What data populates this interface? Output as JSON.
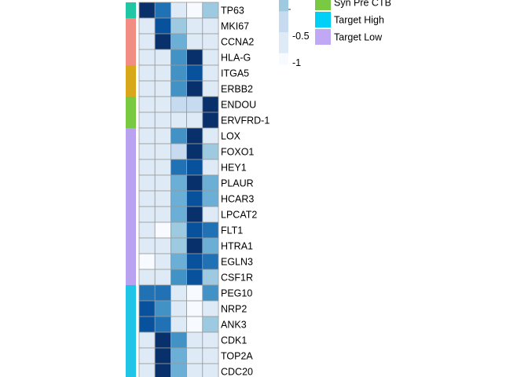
{
  "chart_data": {
    "type": "heatmap",
    "genes": [
      "TP63",
      "MKI67",
      "CCNA2",
      "HLA-G",
      "ITGA5",
      "ERBB2",
      "ENDOU",
      "ERVFRD-1",
      "LOX",
      "FOXO1",
      "HEY1",
      "PLAUR",
      "HCAR3",
      "LPCAT2",
      "FLT1",
      "HTRA1",
      "EGLN3",
      "CSF1R",
      "PEG10",
      "NRP2",
      "ANK3",
      "CDK1",
      "TOP2A",
      "CDC20"
    ],
    "gene_groups": [
      "teal",
      "salmon",
      "salmon",
      "salmon",
      "gold",
      "gold",
      "green",
      "green",
      "lavender",
      "lavender",
      "lavender",
      "lavender",
      "lavender",
      "lavender",
      "lavender",
      "lavender",
      "lavender",
      "lavender",
      "cyan",
      "cyan",
      "cyan",
      "cyan",
      "cyan",
      "cyan"
    ],
    "group_colors": {
      "teal": "#1fc7a3",
      "salmon": "#f28d83",
      "gold": "#d9a81a",
      "green": "#7ac943",
      "lavender": "#b9a2ef",
      "cyan": "#1fc4e6"
    },
    "values": [
      [
        1.9,
        1.1,
        -0.7,
        -0.9,
        0.2
      ],
      [
        -0.8,
        1.6,
        0.1,
        -0.6,
        -0.8
      ],
      [
        -0.8,
        1.9,
        0.5,
        -0.5,
        -0.7
      ],
      [
        -0.7,
        -0.7,
        0.8,
        1.9,
        -0.6
      ],
      [
        -0.7,
        -0.7,
        0.8,
        1.5,
        -0.6
      ],
      [
        -0.7,
        -0.7,
        0.8,
        1.9,
        -0.6
      ],
      [
        -0.5,
        -0.5,
        -0.4,
        -0.4,
        1.9
      ],
      [
        -0.6,
        -0.6,
        -0.5,
        -0.5,
        1.9
      ],
      [
        -0.8,
        -0.7,
        0.9,
        1.9,
        -0.6
      ],
      [
        -0.7,
        -0.7,
        -0.4,
        1.9,
        0.1
      ],
      [
        -0.7,
        -0.7,
        1.4,
        1.6,
        -0.6
      ],
      [
        -0.7,
        -0.7,
        0.6,
        1.9,
        0.6
      ],
      [
        -0.7,
        -0.7,
        0.6,
        1.6,
        0.6
      ],
      [
        -0.7,
        -0.5,
        0.6,
        1.9,
        -0.5
      ],
      [
        -0.7,
        -1.0,
        0.2,
        1.6,
        1.3
      ],
      [
        -0.7,
        -0.7,
        0.2,
        1.9,
        0.6
      ],
      [
        -1.0,
        -0.7,
        0.5,
        1.6,
        1.3
      ],
      [
        -0.7,
        -0.7,
        1.0,
        1.6,
        0.2
      ],
      [
        1.3,
        1.1,
        -0.7,
        -1.0,
        0.9
      ],
      [
        1.6,
        0.9,
        -0.7,
        -0.9,
        -0.5
      ],
      [
        1.6,
        1.1,
        -0.7,
        -0.9,
        0.0
      ],
      [
        -0.7,
        1.9,
        0.8,
        -0.5,
        -0.8
      ],
      [
        -0.5,
        1.9,
        0.6,
        -0.5,
        -0.7
      ],
      [
        -0.7,
        1.9,
        0.6,
        -0.5,
        -0.7
      ]
    ],
    "color_scale": [
      "#f7fbff",
      "#deebf7",
      "#c6dbef",
      "#9ecae1",
      "#6baed6",
      "#4292c6",
      "#2171b5",
      "#08519c",
      "#08306b"
    ],
    "value_range": [
      -1,
      2
    ],
    "colorbar_ticks": [
      "-0.5",
      "-1"
    ],
    "colorbar_tick_values": [
      -0.5,
      -1
    ],
    "colorbar_top_value": 0,
    "legend": [
      {
        "label": "Syn Pre CTB",
        "color": "#7ac943"
      },
      {
        "label": "Target High",
        "color": "#00d0f5"
      },
      {
        "label": "Target Low",
        "color": "#c0a8f5"
      }
    ]
  }
}
